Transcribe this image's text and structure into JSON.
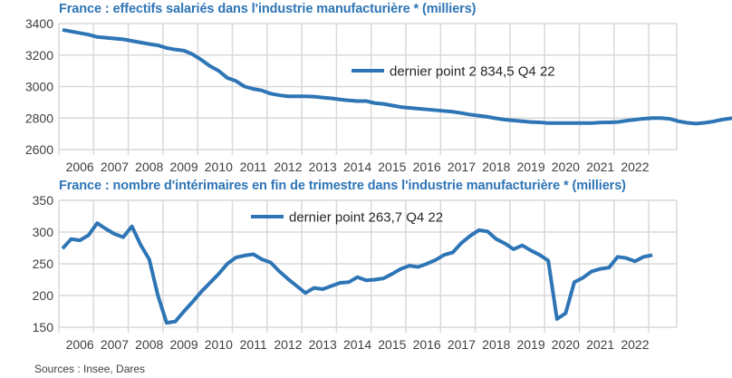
{
  "source": "Sources : Insee, Dares",
  "colors": {
    "line": "#2e75b6",
    "title": "#2e75b6",
    "grid": "#d9d9d9",
    "text": "#404040"
  },
  "chart_data": [
    {
      "type": "line",
      "title": "France : effectifs salariés dans l'industrie manufacturière * (milliers)",
      "xlabel": "",
      "ylabel": "",
      "frequency": "quarterly",
      "x_start": "2006 Q1",
      "x_end": "2022 Q4",
      "categories": [
        "2006",
        "2007",
        "2008",
        "2009",
        "2010",
        "2011",
        "2012",
        "2013",
        "2014",
        "2015",
        "2016",
        "2017",
        "2018",
        "2019",
        "2020",
        "2021",
        "2022"
      ],
      "yticks": [
        "3400",
        "3200",
        "3000",
        "2800",
        "2600"
      ],
      "ylim": [
        2600,
        3400
      ],
      "grid": true,
      "legend": {
        "label": "dernier point 2 834,5 Q4 22",
        "position": "middle-right"
      },
      "series": [
        {
          "name": "dernier point 2 834,5 Q4 22",
          "values": [
            3360,
            3350,
            3340,
            3330,
            3315,
            3310,
            3305,
            3300,
            3290,
            3280,
            3270,
            3262,
            3245,
            3235,
            3228,
            3205,
            3170,
            3130,
            3100,
            3055,
            3035,
            3000,
            2985,
            2975,
            2955,
            2945,
            2938,
            2938,
            2938,
            2936,
            2930,
            2925,
            2918,
            2912,
            2908,
            2908,
            2895,
            2890,
            2880,
            2870,
            2865,
            2860,
            2855,
            2850,
            2845,
            2840,
            2832,
            2822,
            2815,
            2808,
            2798,
            2790,
            2785,
            2780,
            2775,
            2773,
            2768,
            2768,
            2768,
            2768,
            2768,
            2768,
            2772,
            2773,
            2775,
            2783,
            2790,
            2796,
            2800,
            2800,
            2795,
            2780,
            2770,
            2765,
            2770,
            2778,
            2790,
            2798,
            2805,
            2812,
            2822,
            2830,
            2834.5
          ]
        }
      ]
    },
    {
      "type": "line",
      "title": "France : nombre d'intérimaires en fin de trimestre dans l'industrie manufacturière * (milliers)",
      "xlabel": "",
      "ylabel": "",
      "frequency": "quarterly",
      "x_start": "2006 Q1",
      "x_end": "2022 Q4",
      "categories": [
        "2006",
        "2007",
        "2008",
        "2009",
        "2010",
        "2011",
        "2012",
        "2013",
        "2014",
        "2015",
        "2016",
        "2017",
        "2018",
        "2019",
        "2020",
        "2021",
        "2022"
      ],
      "yticks": [
        "350",
        "300",
        "250",
        "200",
        "150"
      ],
      "ylim": [
        150,
        350
      ],
      "grid": true,
      "legend": {
        "label": "dernier point 263,7 Q4 22",
        "position": "top-center"
      },
      "series": [
        {
          "name": "dernier point 263,7 Q4 22",
          "values": [
            274,
            289,
            287,
            295,
            314,
            305,
            297,
            292,
            309,
            280,
            257,
            200,
            157,
            159,
            175,
            190,
            206,
            220,
            234,
            250,
            260,
            263,
            265,
            257,
            252,
            238,
            226,
            215,
            204,
            212,
            210,
            215,
            220,
            221,
            229,
            224,
            225,
            227,
            234,
            242,
            247,
            245,
            250,
            256,
            264,
            268,
            283,
            294,
            303,
            301,
            289,
            282,
            273,
            279,
            271,
            264,
            255,
            163,
            172,
            221,
            228,
            238,
            242,
            244,
            261,
            259,
            254,
            261,
            263.7
          ]
        }
      ]
    }
  ]
}
